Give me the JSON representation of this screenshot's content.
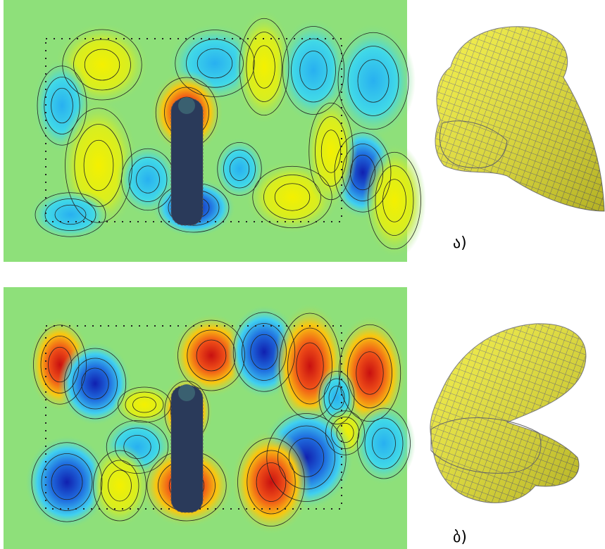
{
  "panels": [
    {
      "label": "ა)"
    },
    {
      "label": "ბ)"
    }
  ]
}
